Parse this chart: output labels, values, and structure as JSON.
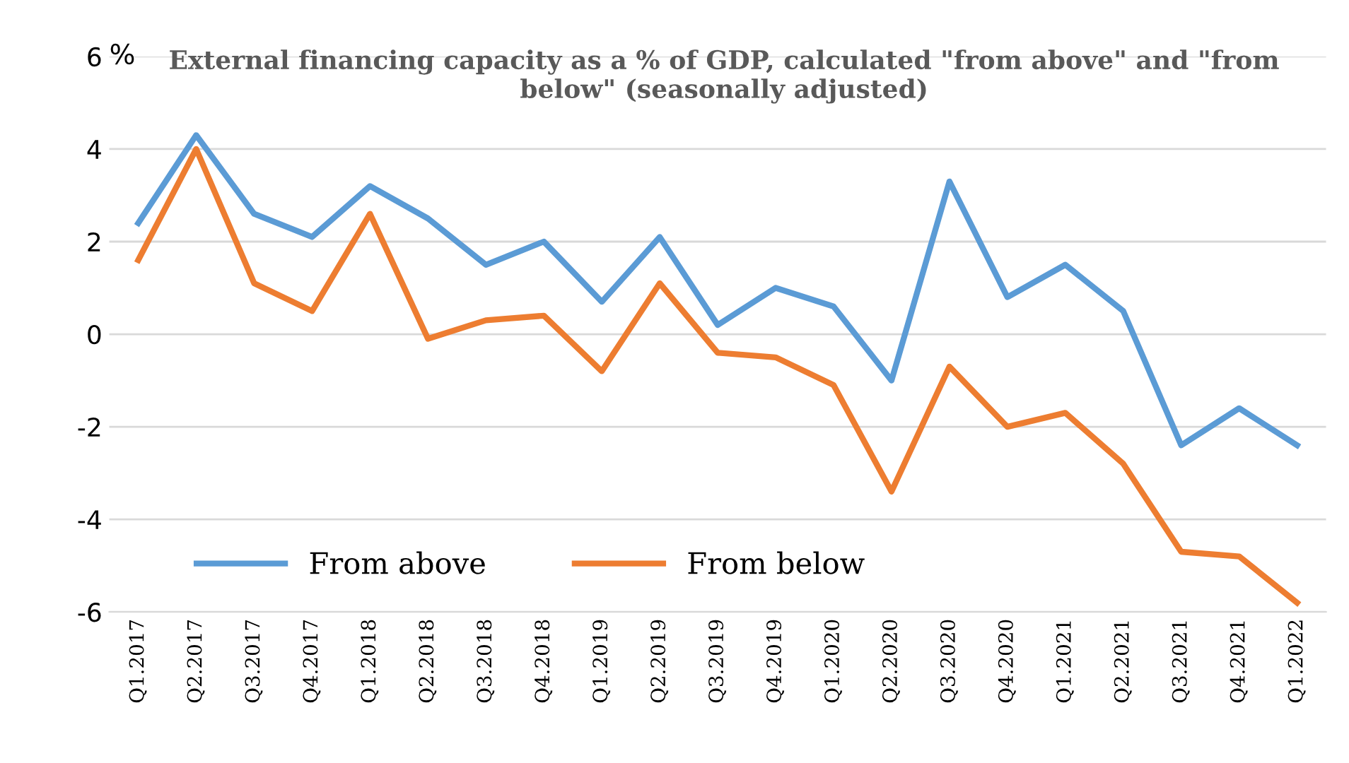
{
  "chart_data": {
    "type": "line",
    "title": "External financing capacity as a % of GDP, calculated \"from above\" and \"from below\" (seasonally adjusted)",
    "ylabel": "%",
    "categories": [
      "Q1.2017",
      "Q2.2017",
      "Q3.2017",
      "Q4.2017",
      "Q1.2018",
      "Q2.2018",
      "Q3.2018",
      "Q4.2018",
      "Q1.2019",
      "Q2.2019",
      "Q3.2019",
      "Q4.2019",
      "Q1.2020",
      "Q2.2020",
      "Q3.2020",
      "Q4.2020",
      "Q1.2021",
      "Q2.2021",
      "Q3.2021",
      "Q4.2021",
      "Q1.2022"
    ],
    "series": [
      {
        "name": "From above",
        "color": "#5b9bd5",
        "values": [
          2.4,
          4.3,
          2.6,
          2.1,
          3.2,
          2.5,
          1.5,
          2.0,
          0.7,
          2.1,
          0.2,
          1.0,
          0.6,
          -1.0,
          3.3,
          0.8,
          1.5,
          0.5,
          -2.4,
          -1.6,
          -2.4
        ]
      },
      {
        "name": "From below",
        "color": "#ed7d31",
        "values": [
          1.6,
          4.0,
          1.1,
          0.5,
          2.6,
          -0.1,
          0.3,
          0.4,
          -0.8,
          1.1,
          -0.4,
          -0.5,
          -1.1,
          -3.4,
          -0.7,
          -2.0,
          -1.7,
          -2.8,
          -4.7,
          -4.8,
          -5.8
        ]
      }
    ],
    "ylim": [
      -6,
      6
    ],
    "yticks": [
      -6,
      -4,
      -2,
      0,
      2,
      4,
      6
    ],
    "grid": "y",
    "legend": "bottom left",
    "marker": "none",
    "line_style": "solid"
  }
}
